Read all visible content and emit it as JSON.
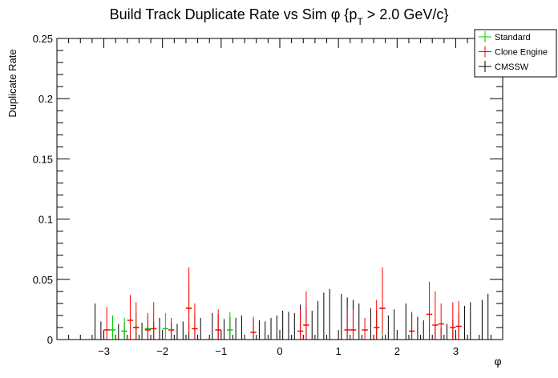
{
  "chart_data": {
    "type": "scatter",
    "title": "Build Track Duplicate Rate vs Sim φ {p",
    "title_sub": "T",
    "title_tail": " > 2.0 GeV/c}",
    "xlabel": "φ",
    "ylabel": "Duplicate Rate",
    "xlim": [
      -3.8,
      3.8
    ],
    "ylim": [
      0,
      0.25
    ],
    "bin_width": 0.1,
    "x_ticks": [
      -3,
      -2,
      -1,
      0,
      1,
      2,
      3
    ],
    "x_tick_labels": [
      "−3",
      "−2",
      "−1",
      "0",
      "1",
      "2",
      "3"
    ],
    "y_ticks": [
      0,
      0.05,
      0.1,
      0.15,
      0.2,
      0.25
    ],
    "y_tick_labels": [
      "0",
      "0.05",
      "0.1",
      "0.15",
      "0.2",
      "0.25"
    ],
    "legend_position": "top-right",
    "series": [
      {
        "name": "Standard",
        "color": "#00cc00",
        "points": [
          {
            "x": -2.85,
            "y": 0.008,
            "lo": 0.0,
            "hi": 0.02
          },
          {
            "x": -2.65,
            "y": 0.007,
            "lo": 0.0,
            "hi": 0.018
          },
          {
            "x": -2.45,
            "y": 0.01,
            "lo": 0.0,
            "hi": 0.022
          },
          {
            "x": -2.25,
            "y": 0.009,
            "lo": 0.0,
            "hi": 0.02
          },
          {
            "x": -1.95,
            "y": 0.009,
            "lo": 0.0,
            "hi": 0.022
          },
          {
            "x": -1.55,
            "y": 0.026,
            "lo": 0.005,
            "hi": 0.045
          },
          {
            "x": -0.85,
            "y": 0.008,
            "lo": 0.0,
            "hi": 0.023
          },
          {
            "x": 1.75,
            "y": 0.026,
            "lo": 0.003,
            "hi": 0.045
          }
        ]
      },
      {
        "name": "Clone Engine",
        "color": "#ff0000",
        "points": [
          {
            "x": -2.95,
            "y": 0.008,
            "lo": 0.0,
            "hi": 0.027
          },
          {
            "x": -2.55,
            "y": 0.016,
            "lo": 0.0,
            "hi": 0.037
          },
          {
            "x": -2.45,
            "y": 0.01,
            "lo": 0.0,
            "hi": 0.031
          },
          {
            "x": -2.25,
            "y": 0.008,
            "lo": 0.0,
            "hi": 0.022
          },
          {
            "x": -2.15,
            "y": 0.009,
            "lo": 0.0,
            "hi": 0.031
          },
          {
            "x": -1.85,
            "y": 0.008,
            "lo": 0.0,
            "hi": 0.018
          },
          {
            "x": -1.55,
            "y": 0.026,
            "lo": 0.005,
            "hi": 0.06
          },
          {
            "x": -1.45,
            "y": 0.009,
            "lo": 0.0,
            "hi": 0.03
          },
          {
            "x": -1.05,
            "y": 0.008,
            "lo": 0.0,
            "hi": 0.025
          },
          {
            "x": -0.45,
            "y": 0.006,
            "lo": 0.0,
            "hi": 0.019
          },
          {
            "x": 0.35,
            "y": 0.007,
            "lo": 0.0,
            "hi": 0.025
          },
          {
            "x": 0.45,
            "y": 0.012,
            "lo": 0.0,
            "hi": 0.04
          },
          {
            "x": 1.15,
            "y": 0.008,
            "lo": 0.0,
            "hi": 0.025
          },
          {
            "x": 1.25,
            "y": 0.008,
            "lo": 0.0,
            "hi": 0.025
          },
          {
            "x": 1.45,
            "y": 0.008,
            "lo": 0.0,
            "hi": 0.018
          },
          {
            "x": 1.65,
            "y": 0.01,
            "lo": 0.0,
            "hi": 0.033
          },
          {
            "x": 1.75,
            "y": 0.026,
            "lo": 0.005,
            "hi": 0.06
          },
          {
            "x": 2.25,
            "y": 0.007,
            "lo": 0.0,
            "hi": 0.023
          },
          {
            "x": 2.55,
            "y": 0.021,
            "lo": 0.0,
            "hi": 0.048
          },
          {
            "x": 2.65,
            "y": 0.012,
            "lo": 0.0,
            "hi": 0.04
          },
          {
            "x": 2.75,
            "y": 0.013,
            "lo": 0.0,
            "hi": 0.03
          },
          {
            "x": 2.95,
            "y": 0.01,
            "lo": 0.0,
            "hi": 0.031
          },
          {
            "x": 3.05,
            "y": 0.011,
            "lo": 0.0,
            "hi": 0.032
          }
        ]
      },
      {
        "name": "CMSSW",
        "color": "#000000",
        "values": [
          0,
          0,
          0,
          0,
          0,
          0,
          0.03,
          0.015,
          0.0,
          0.014,
          0.013,
          0.014,
          0.0,
          0.012,
          0.014,
          0.016,
          0.015,
          0.018,
          0.0,
          0.014,
          0.013,
          0.015,
          0.013,
          0.02,
          0.018,
          0.0,
          0.022,
          0.021,
          0.017,
          0.019,
          0.018,
          0.02,
          0.0,
          0.017,
          0.016,
          0.015,
          0.018,
          0.02,
          0.024,
          0.023,
          0.022,
          0.029,
          0.027,
          0.024,
          0.032,
          0.039,
          0.042,
          0.0,
          0.038,
          0.035,
          0.033,
          0.03,
          0.0,
          0.026,
          0.024,
          0.021,
          0.02,
          0.025,
          0.0,
          0.03,
          0.022,
          0.019,
          0.016,
          0.014,
          0.012,
          0.01,
          0.013,
          0.016,
          0.022,
          0.028,
          0.031,
          0.0,
          0.033,
          0.038,
          0,
          0,
          0,
          0
        ]
      }
    ]
  }
}
